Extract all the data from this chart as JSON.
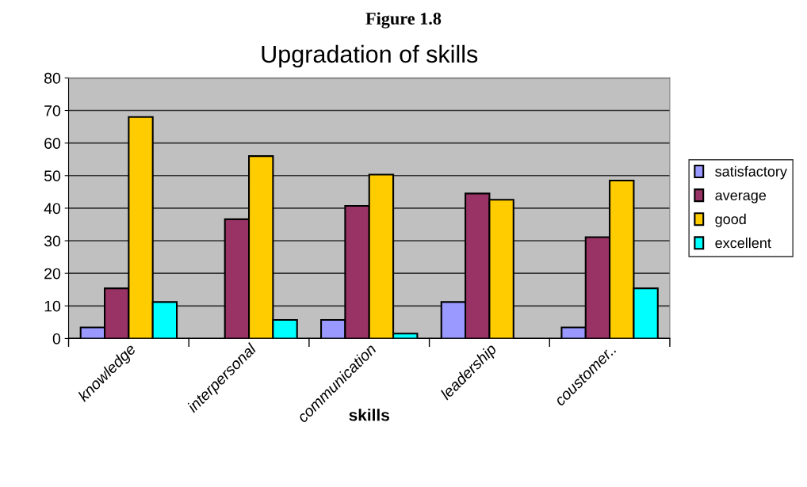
{
  "chart_data": {
    "type": "bar",
    "title": "Upgradation of skills",
    "xlabel": "skills",
    "annotations": [
      "Figure 1.8"
    ],
    "categories": [
      "knowledge",
      "interpersonal",
      "communication",
      "leadership",
      "coustomer.."
    ],
    "series": [
      {
        "name": "satisfactory",
        "color": "#9999ff",
        "values": [
          3.4,
          null,
          5.7,
          11.2,
          3.4
        ]
      },
      {
        "name": "average",
        "color": "#993366",
        "values": [
          15.4,
          36.6,
          40.7,
          44.5,
          31.1
        ]
      },
      {
        "name": "good",
        "color": "#ffcc00",
        "values": [
          68,
          56,
          50.3,
          42.6,
          48.5
        ]
      },
      {
        "name": "excellent",
        "color": "#00ffff",
        "values": [
          11.2,
          5.7,
          1.5,
          null,
          15.4
        ]
      }
    ],
    "ylim": [
      0,
      80
    ],
    "yticks": [
      0,
      10,
      20,
      30,
      40,
      50,
      60,
      70,
      80
    ],
    "grid": "y",
    "legend": "right"
  }
}
